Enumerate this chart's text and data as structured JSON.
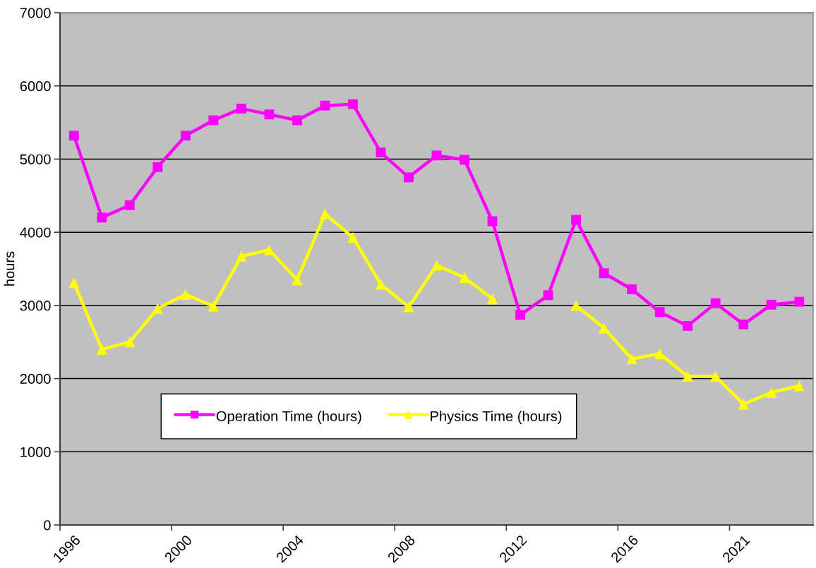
{
  "chart_data": {
    "type": "line",
    "ylabel": "hours",
    "categories": [
      "1996",
      null,
      null,
      null,
      "2000",
      null,
      null,
      null,
      "2004",
      null,
      null,
      null,
      "2008",
      null,
      null,
      null,
      "2012",
      null,
      null,
      null,
      "2016",
      null,
      null,
      null,
      "2021",
      null,
      null
    ],
    "series": [
      {
        "name": "Operation Time (hours)",
        "color": "#ff00ff",
        "marker": "square",
        "values": [
          5320,
          4200,
          4370,
          4890,
          5320,
          5530,
          5690,
          5610,
          5530,
          5730,
          5750,
          5090,
          4750,
          5050,
          4990,
          4150,
          2870,
          3140,
          4170,
          3440,
          3220,
          2910,
          2720,
          3030,
          2740,
          3010,
          3050
        ]
      },
      {
        "name": "Physics Time (hours)",
        "color": "#ffff00",
        "marker": "triangle",
        "values": [
          3310,
          2400,
          2500,
          2960,
          3150,
          2990,
          3670,
          3760,
          3350,
          4250,
          3930,
          3290,
          2980,
          3550,
          3380,
          3090,
          null,
          null,
          3000,
          2690,
          2270,
          2340,
          2030,
          2030,
          1650,
          1810,
          1900
        ]
      }
    ],
    "ylim": [
      0,
      7000
    ],
    "yticks": [
      0,
      1000,
      2000,
      3000,
      4000,
      5000,
      6000,
      7000
    ],
    "grid": "y",
    "legend": "bottom",
    "line_style": "solid"
  }
}
